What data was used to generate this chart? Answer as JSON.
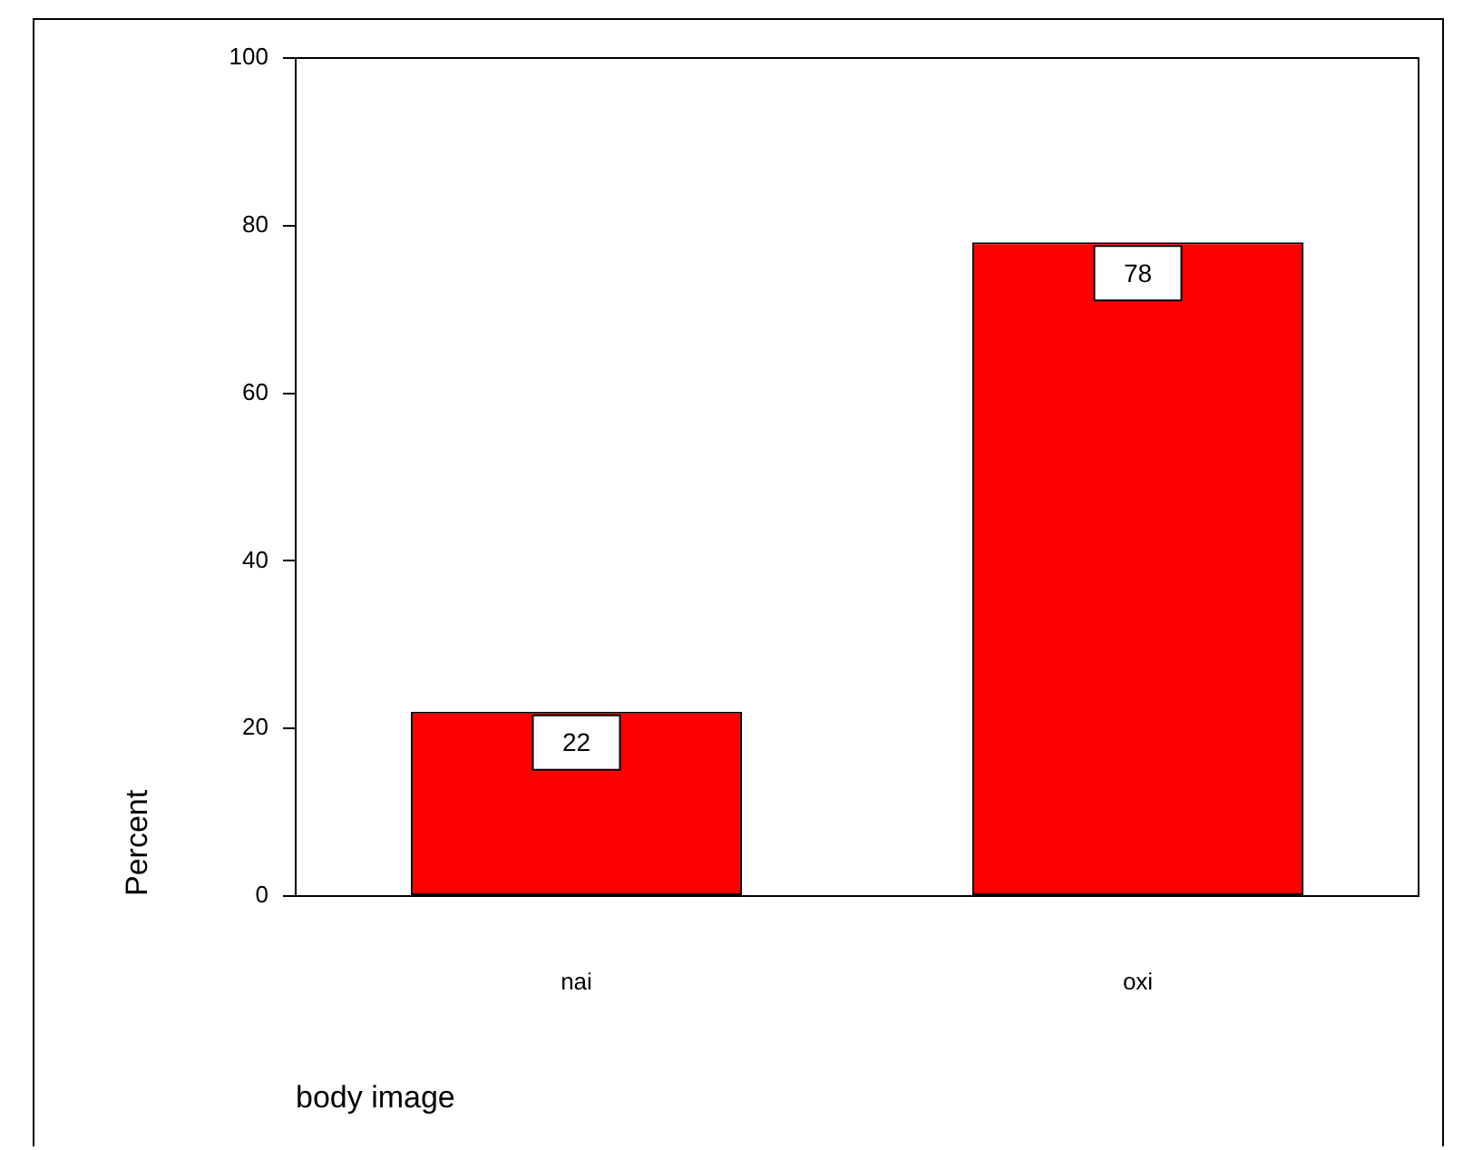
{
  "chart_data": {
    "type": "bar",
    "categories": [
      "nai",
      "oxi"
    ],
    "values": [
      22,
      78
    ],
    "color": "#ff0000",
    "xlabel": "body image",
    "ylabel": "Percent",
    "ylim": [
      0,
      100
    ],
    "yticks": [
      0,
      20,
      40,
      60,
      80,
      100
    ],
    "grid": false,
    "legend": false,
    "data_labels": true
  }
}
